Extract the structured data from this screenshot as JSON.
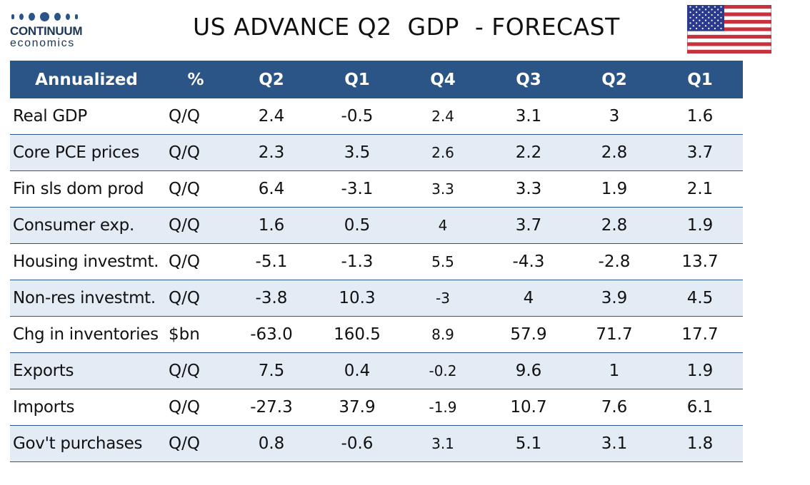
{
  "logo": {
    "brand": "CONTINUUM",
    "sub": "economics"
  },
  "title": "US ADVANCE Q2  GDP  - FORECAST",
  "table": {
    "headers": [
      "Annualized",
      "%",
      "Q2",
      "Q1",
      "Q4",
      "Q3",
      "Q2",
      "Q1"
    ],
    "rows": [
      {
        "label": "Real GDP",
        "unit": "Q/Q",
        "values": [
          "2.4",
          "-0.5",
          "2.4",
          "3.1",
          "3",
          "1.6"
        ]
      },
      {
        "label": "Core PCE prices",
        "unit": "Q/Q",
        "values": [
          "2.3",
          "3.5",
          "2.6",
          "2.2",
          "2.8",
          "3.7"
        ]
      },
      {
        "label": "Fin sls dom prod",
        "unit": "Q/Q",
        "values": [
          "6.4",
          "-3.1",
          "3.3",
          "3.3",
          "1.9",
          "2.1"
        ]
      },
      {
        "label": "Consumer exp.",
        "unit": "Q/Q",
        "values": [
          "1.6",
          "0.5",
          "4",
          "3.7",
          "2.8",
          "1.9"
        ]
      },
      {
        "label": "Housing investmt.",
        "unit": "Q/Q",
        "values": [
          "-5.1",
          "-1.3",
          "5.5",
          "-4.3",
          "-2.8",
          "13.7"
        ]
      },
      {
        "label": "Non-res investmt.",
        "unit": "Q/Q",
        "values": [
          "-3.8",
          "10.3",
          "-3",
          "4",
          "3.9",
          "4.5"
        ]
      },
      {
        "label": "Chg in inventories",
        "unit": "$bn",
        "values": [
          "-63.0",
          "160.5",
          "8.9",
          "57.9",
          "71.7",
          "17.7"
        ]
      },
      {
        "label": "Exports",
        "unit": "Q/Q",
        "values": [
          "7.5",
          "0.4",
          "-0.2",
          "9.6",
          "1",
          "1.9"
        ]
      },
      {
        "label": "Imports",
        "unit": "Q/Q",
        "values": [
          "-27.3",
          "37.9",
          "-1.9",
          "10.7",
          "7.6",
          "6.1"
        ]
      },
      {
        "label": "Gov't purchases",
        "unit": "Q/Q",
        "values": [
          "0.8",
          "-0.6",
          "3.1",
          "5.1",
          "3.1",
          "1.8"
        ]
      }
    ]
  },
  "colors": {
    "header": "#2c5587",
    "stripe": "#e3ebf5",
    "divider": "#2c5587"
  },
  "icons": {
    "flag": "us-flag-icon"
  }
}
